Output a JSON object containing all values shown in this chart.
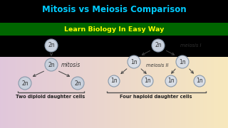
{
  "title": "Mitosis vs Meiosis Comparison",
  "subtitle": "Learn Biology In Easy Way",
  "title_color": "#00CCFF",
  "title_bg": "#000000",
  "subtitle_color": "#FFFF00",
  "subtitle_bg": "#008800",
  "cell_color_2n": "#C8D0DC",
  "cell_color_1n": "#D8DDE5",
  "cell_edge": "#8898AA",
  "mitosis_label": "mitosis",
  "meiosis1_label": "meiosis I",
  "meiosis2_label": "meiosis II",
  "left_caption": "Two diploid daughter cells",
  "right_caption": "Four haploid daughter cells",
  "arrow_color": "#444444",
  "text_color": "#333333",
  "bracket_color": "#555555",
  "caption_color": "#222222"
}
